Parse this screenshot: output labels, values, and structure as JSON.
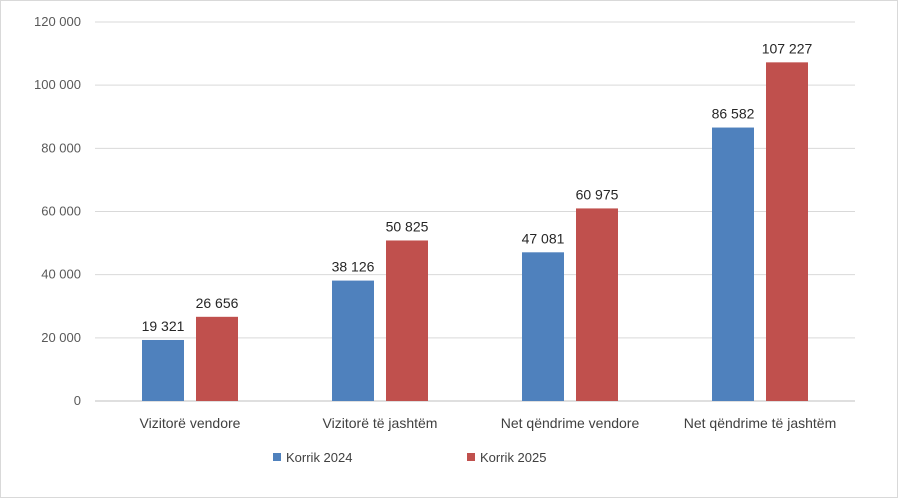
{
  "chart_data": {
    "type": "bar",
    "categories": [
      "Vizitorë vendore",
      "Vizitorë të jashtëm",
      "Net qëndrime vendore",
      "Net qëndrime të jashtëm"
    ],
    "series": [
      {
        "name": "Korrik  2024",
        "values": [
          19321,
          38126,
          47081,
          86582
        ],
        "labels": [
          "19 321",
          "38 126",
          "47 081",
          "86 582"
        ],
        "color": "#4f81bd"
      },
      {
        "name": "Korrik 2025",
        "values": [
          26656,
          50825,
          60975,
          107227
        ],
        "labels": [
          "26 656",
          "50 825",
          "60 975",
          "107 227"
        ],
        "color": "#c0504d"
      }
    ],
    "yticks": [
      0,
      20000,
      40000,
      60000,
      80000,
      100000,
      120000
    ],
    "ytick_labels": [
      "0",
      "20 000",
      "40 000",
      "60 000",
      "80 000",
      "100 000",
      "120 000"
    ],
    "ylim": [
      0,
      120000
    ],
    "grid": true,
    "legend": "bottom",
    "title": "",
    "xlabel": "",
    "ylabel": ""
  }
}
